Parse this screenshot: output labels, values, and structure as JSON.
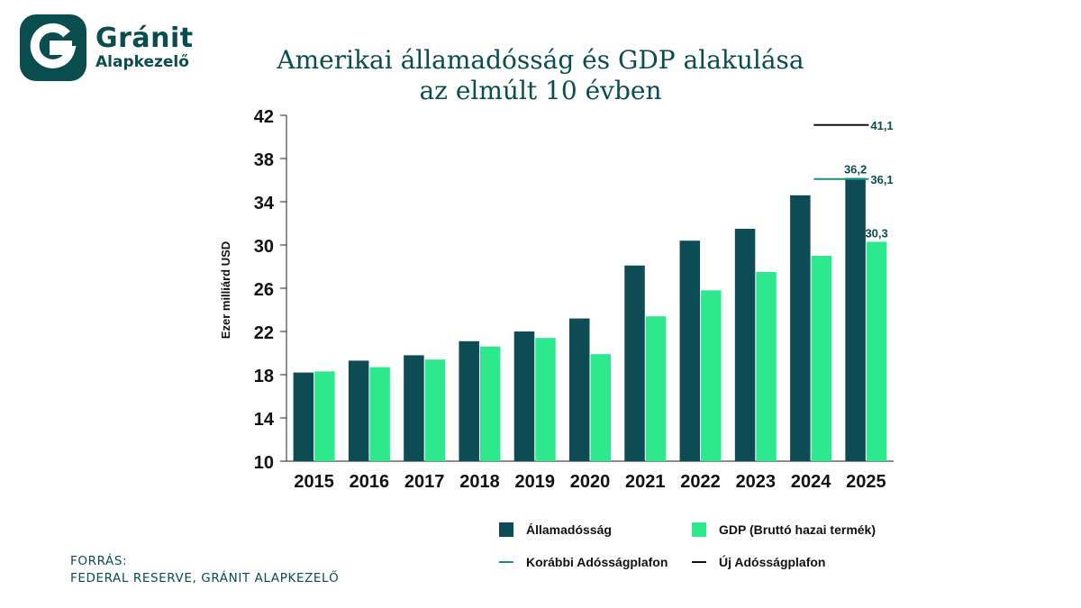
{
  "logo": {
    "name": "Gránit",
    "sub": "Alapkezelő",
    "icon": "granit-g-icon"
  },
  "title_line1": "Amerikai államadósság és GDP alakulása",
  "title_line2": "az elmúlt 10 évben",
  "source_label": "FORRÁS:",
  "source_text": "FEDERAL RESERVE, GRÁNIT ALAPKEZELŐ",
  "colors": {
    "debt": "#0d4c54",
    "gdp": "#2ee88e",
    "old_ceiling": "#1a8f8c",
    "new_ceiling": "#111111",
    "brand": "#0a4d4f"
  },
  "legend": {
    "debt": "Államadósság",
    "gdp": "GDP (Bruttó hazai termék)",
    "old_ceiling": "Korábbi Adósságplafon",
    "new_ceiling": "Új Adósságplafon"
  },
  "chart_data": {
    "type": "bar",
    "ylabel": "Ezer milliárd USD",
    "ylim": [
      10,
      42
    ],
    "yticks": [
      10,
      14,
      18,
      22,
      26,
      30,
      34,
      38,
      42
    ],
    "categories": [
      "2015",
      "2016",
      "2017",
      "2018",
      "2019",
      "2020",
      "2021",
      "2022",
      "2023",
      "2024",
      "2025"
    ],
    "series": [
      {
        "name": "Államadósság",
        "values": [
          18.2,
          19.3,
          19.8,
          21.1,
          22.0,
          23.2,
          28.1,
          30.4,
          31.5,
          34.6,
          36.2
        ]
      },
      {
        "name": "GDP (Bruttó hazai termék)",
        "values": [
          18.3,
          18.7,
          19.4,
          20.6,
          21.4,
          19.9,
          23.4,
          25.8,
          27.5,
          29.0,
          30.3
        ]
      }
    ],
    "reference_lines": [
      {
        "name": "Korábbi Adósságplafon",
        "value": 36.1,
        "label": "36,1"
      },
      {
        "name": "Új Adósságplafon",
        "value": 41.1,
        "label": "41,1"
      }
    ],
    "data_labels": [
      {
        "series": "Államadósság",
        "category": "2025",
        "text": "36,2"
      },
      {
        "series": "GDP (Bruttó hazai termék)",
        "category": "2025",
        "text": "30,3"
      }
    ]
  }
}
